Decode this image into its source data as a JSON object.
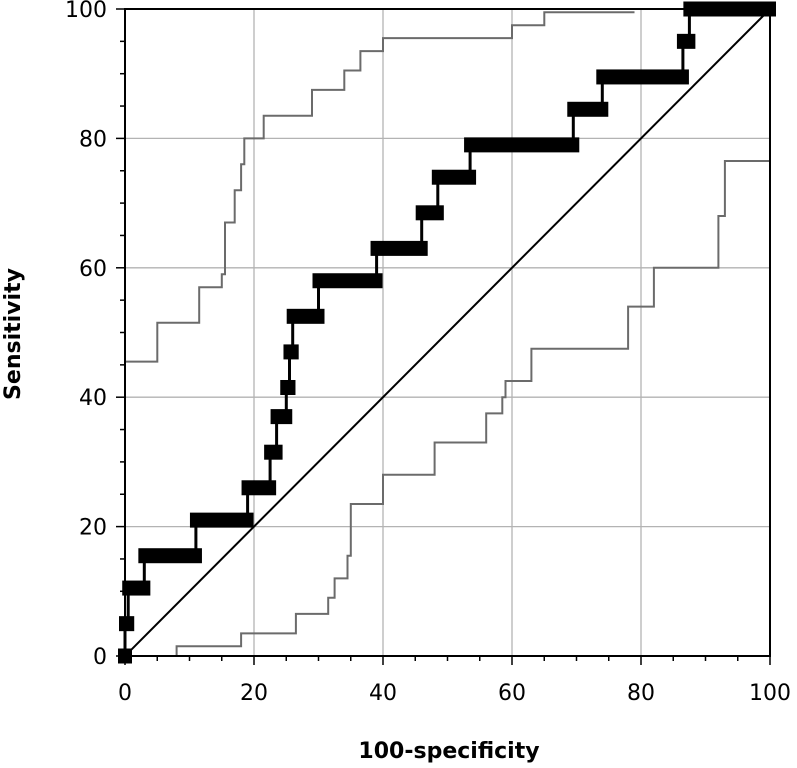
{
  "chart_data": {
    "type": "line",
    "title": "",
    "xlabel": "100-specificity",
    "ylabel": "Sensitivity",
    "xlim": [
      0,
      100
    ],
    "ylim": [
      0,
      100
    ],
    "grid": true,
    "x_ticks": [
      "0",
      "20",
      "40",
      "60",
      "80",
      "100"
    ],
    "y_ticks": [
      "0",
      "20",
      "40",
      "60",
      "80",
      "100"
    ],
    "colors": {
      "roc": "#000000",
      "ci": "#6b6b6b",
      "grid": "#b3b3b3",
      "diagonal": "#000000"
    },
    "series": [
      {
        "role": "roc-curve",
        "points": [
          [
            0,
            0
          ],
          [
            0,
            5
          ],
          [
            0.5,
            5
          ],
          [
            0.5,
            10.5
          ],
          [
            3,
            10.5
          ],
          [
            3,
            15.5
          ],
          [
            11,
            15.5
          ],
          [
            11,
            21
          ],
          [
            19,
            21
          ],
          [
            19,
            26
          ],
          [
            22.5,
            26
          ],
          [
            22.5,
            31.5
          ],
          [
            23.5,
            31.5
          ],
          [
            23.5,
            37
          ],
          [
            25,
            37
          ],
          [
            25,
            41.5
          ],
          [
            25.5,
            41.5
          ],
          [
            25.5,
            47
          ],
          [
            26,
            47
          ],
          [
            26,
            52.5
          ],
          [
            30,
            52.5
          ],
          [
            30,
            58
          ],
          [
            39,
            58
          ],
          [
            39,
            63
          ],
          [
            46,
            63
          ],
          [
            46,
            68.5
          ],
          [
            48.5,
            68.5
          ],
          [
            48.5,
            74
          ],
          [
            53.5,
            74
          ],
          [
            53.5,
            79
          ],
          [
            69.5,
            79
          ],
          [
            69.5,
            84.5
          ],
          [
            74,
            84.5
          ],
          [
            74,
            89.5
          ],
          [
            86.5,
            89.5
          ],
          [
            86.5,
            95
          ],
          [
            87.5,
            95
          ],
          [
            87.5,
            100
          ],
          [
            100,
            100
          ]
        ]
      },
      {
        "role": "upper-confidence-bound",
        "points": [
          [
            0,
            45.5
          ],
          [
            5,
            45.5
          ],
          [
            5,
            51.5
          ],
          [
            11.5,
            51.5
          ],
          [
            11.5,
            57
          ],
          [
            15,
            57
          ],
          [
            15,
            59
          ],
          [
            15.5,
            59
          ],
          [
            15.5,
            67
          ],
          [
            17,
            67
          ],
          [
            17,
            72
          ],
          [
            18,
            72
          ],
          [
            18,
            76
          ],
          [
            18.5,
            76
          ],
          [
            18.5,
            80
          ],
          [
            21.5,
            80
          ],
          [
            21.5,
            83.5
          ],
          [
            29,
            83.5
          ],
          [
            29,
            87.5
          ],
          [
            34,
            87.5
          ],
          [
            34,
            90.5
          ],
          [
            36.5,
            90.5
          ],
          [
            36.5,
            93.5
          ],
          [
            40,
            93.5
          ],
          [
            40,
            95.5
          ],
          [
            60,
            95.5
          ],
          [
            60,
            97.5
          ],
          [
            65,
            97.5
          ],
          [
            65,
            99.5
          ],
          [
            79,
            99.5
          ]
        ]
      },
      {
        "role": "lower-confidence-bound",
        "points": [
          [
            8,
            0
          ],
          [
            8,
            1.5
          ],
          [
            18,
            1.5
          ],
          [
            18,
            3.5
          ],
          [
            26.5,
            3.5
          ],
          [
            26.5,
            6.5
          ],
          [
            31.5,
            6.5
          ],
          [
            31.5,
            9
          ],
          [
            32.5,
            9
          ],
          [
            32.5,
            12
          ],
          [
            34.5,
            12
          ],
          [
            34.5,
            15.5
          ],
          [
            35,
            15.5
          ],
          [
            35,
            23.5
          ],
          [
            40,
            23.5
          ],
          [
            40,
            28
          ],
          [
            48,
            28
          ],
          [
            48,
            33
          ],
          [
            56,
            33
          ],
          [
            56,
            37.5
          ],
          [
            58.5,
            37.5
          ],
          [
            58.5,
            40
          ],
          [
            59,
            40
          ],
          [
            59,
            42.5
          ],
          [
            63,
            42.5
          ],
          [
            63,
            47.5
          ],
          [
            78,
            47.5
          ],
          [
            78,
            54
          ],
          [
            82,
            54
          ],
          [
            82,
            60
          ],
          [
            92,
            60
          ],
          [
            92,
            68
          ],
          [
            93,
            68
          ],
          [
            93,
            76.5
          ],
          [
            100,
            76.5
          ]
        ]
      },
      {
        "role": "reference-diagonal",
        "points": [
          [
            0,
            0
          ],
          [
            100,
            100
          ]
        ]
      }
    ]
  }
}
